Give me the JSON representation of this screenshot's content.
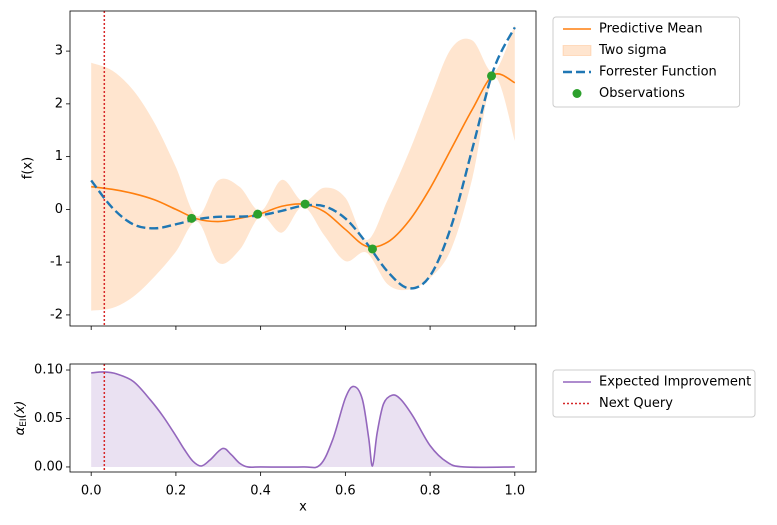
{
  "chart_data": [
    {
      "type": "line",
      "ylabel": "f(x)",
      "legend": "outside right",
      "xlim": [
        -0.05,
        1.05
      ],
      "ylim": [
        -2.21,
        3.76
      ],
      "yticks": [
        -2,
        -1,
        0,
        1,
        2,
        3
      ],
      "sharex": true,
      "x": [
        0,
        0.05,
        0.1,
        0.15,
        0.2,
        0.25,
        0.3,
        0.35,
        0.4,
        0.45,
        0.5,
        0.55,
        0.6,
        0.65,
        0.7,
        0.75,
        0.8,
        0.85,
        0.9,
        0.95,
        1.0
      ],
      "series": [
        {
          "name": "Predictive Mean",
          "kind": "line",
          "color": "#ff7f0e",
          "values": [
            0.43,
            0.38,
            0.3,
            0.18,
            0.0,
            -0.18,
            -0.23,
            -0.17,
            -0.08,
            0.06,
            0.1,
            -0.04,
            -0.38,
            -0.7,
            -0.62,
            -0.22,
            0.4,
            1.15,
            1.9,
            2.55,
            2.4
          ]
        },
        {
          "name": "Two sigma",
          "kind": "band",
          "color": "#ff7f0e",
          "alpha": 0.2,
          "upper": [
            2.78,
            2.63,
            2.25,
            1.63,
            0.8,
            -0.13,
            0.55,
            0.43,
            -0.03,
            0.56,
            0.15,
            0.41,
            0.22,
            -0.58,
            0.18,
            1.08,
            2.1,
            3.05,
            3.2,
            2.6,
            3.5
          ],
          "lower": [
            -1.92,
            -1.87,
            -1.65,
            -1.27,
            -0.8,
            -0.23,
            -1.01,
            -0.77,
            -0.13,
            -0.44,
            0.05,
            -0.49,
            -0.98,
            -0.82,
            -1.42,
            -1.52,
            -1.3,
            -0.75,
            0.6,
            2.5,
            1.3
          ]
        },
        {
          "name": "Forrester Function",
          "kind": "line",
          "dash": true,
          "color": "#1f77b4",
          "values": [
            0.549,
            0.03,
            -0.286,
            -0.359,
            -0.282,
            -0.185,
            -0.141,
            -0.137,
            -0.111,
            -0.028,
            0.069,
            0.06,
            -0.171,
            -0.638,
            -1.181,
            -1.495,
            -1.259,
            -0.318,
            1.157,
            2.651,
            3.45
          ]
        },
        {
          "name": "Observations",
          "kind": "scatter",
          "color": "#2ca02c",
          "x": [
            0.237,
            0.393,
            0.505,
            0.664,
            0.945
          ],
          "values": [
            -0.17,
            -0.09,
            0.1,
            -0.75,
            2.53
          ]
        }
      ]
    },
    {
      "type": "line",
      "xlabel": "x",
      "ylabel": [
        "α",
        "EI",
        "(x)"
      ],
      "legend": "outside right",
      "xlim": [
        -0.05,
        1.05
      ],
      "ylim": [
        -0.0052,
        0.1062
      ],
      "xticks": [
        {
          "value": 0,
          "label": "0.0"
        },
        0.2,
        0.4,
        0.6,
        0.8,
        {
          "value": 1,
          "label": "1.0"
        }
      ],
      "yticks": [
        {
          "value": 0,
          "label": "0.00"
        },
        {
          "value": 0.05,
          "label": "0.05"
        },
        {
          "value": 0.1,
          "label": "0.10"
        }
      ],
      "series": [
        {
          "name": "Expected Improvement",
          "kind": "area",
          "color": "#9467bd",
          "alpha": 0.2,
          "x": [
            0,
            0.03,
            0.06,
            0.1,
            0.14,
            0.17,
            0.2,
            0.22,
            0.24,
            0.26,
            0.28,
            0.31,
            0.33,
            0.35,
            0.37,
            0.4,
            0.5,
            0.54,
            0.57,
            0.6,
            0.62,
            0.64,
            0.655,
            0.664,
            0.675,
            0.69,
            0.71,
            0.73,
            0.76,
            0.8,
            0.84,
            0.88,
            1.0
          ],
          "values": [
            0.097,
            0.098,
            0.096,
            0.088,
            0.069,
            0.052,
            0.032,
            0.018,
            0.006,
            0.001,
            0.007,
            0.019,
            0.013,
            0.004,
            0.0,
            0.0,
            0.0,
            0.002,
            0.028,
            0.071,
            0.083,
            0.07,
            0.03,
            0.001,
            0.035,
            0.065,
            0.074,
            0.07,
            0.052,
            0.022,
            0.005,
            0.0,
            0.0
          ]
        },
        {
          "name": "Next Query",
          "kind": "vline",
          "color": "#d62728",
          "x": 0.031
        }
      ]
    }
  ]
}
